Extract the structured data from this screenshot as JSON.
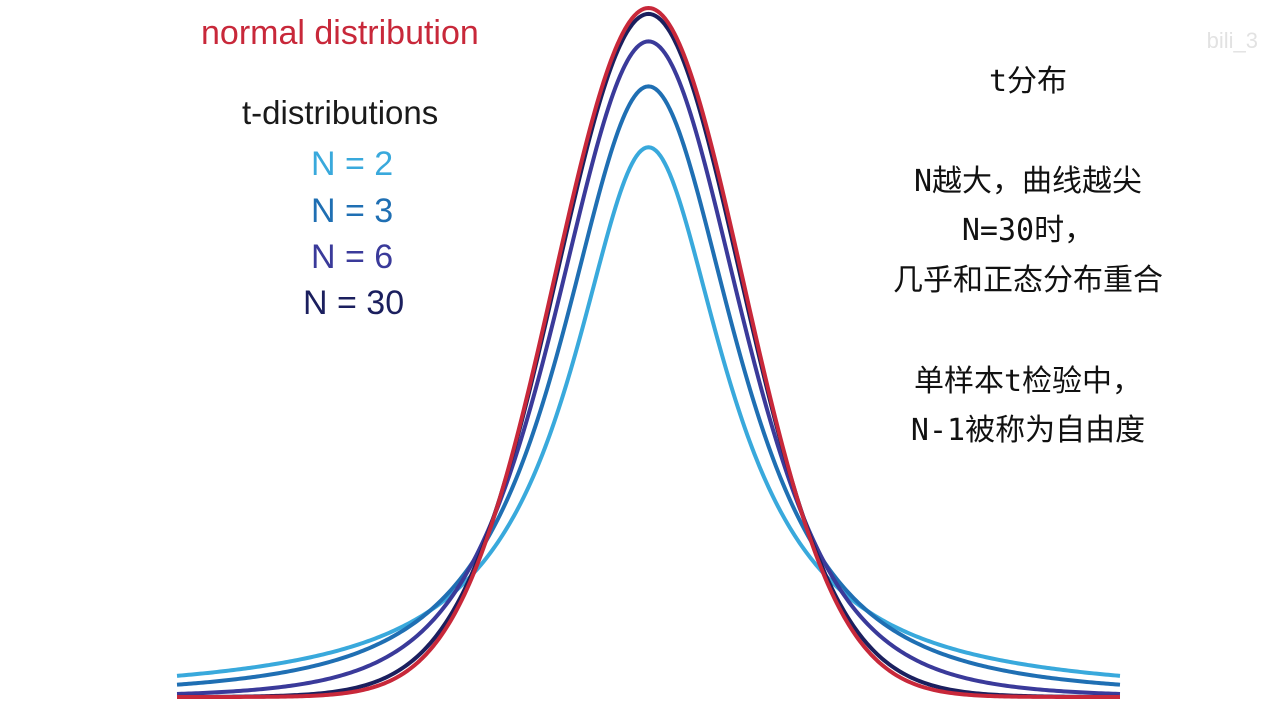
{
  "colors": {
    "normal": "#c8283a",
    "n2": "#39a9dc",
    "n3": "#1f6fb3",
    "n6": "#3a3a9a",
    "n30": "#1b1f5e"
  },
  "legend": {
    "normal_label": "normal distribution",
    "title": "t-distributions",
    "items": [
      {
        "label": "N = 2"
      },
      {
        "label": "N = 3"
      },
      {
        "label": "N = 6"
      },
      {
        "label": "N = 30"
      }
    ]
  },
  "notes": [
    "t分布",
    "N越大，曲线越尖",
    "N=30时，",
    "几乎和正态分布重合",
    "单样本t检验中，",
    "N-1被称为自由度"
  ],
  "watermark": "bili_3",
  "chart_data": {
    "type": "line",
    "xlim": [
      -5,
      5
    ],
    "series": [
      {
        "name": "normal distribution",
        "df": "normal",
        "color_key": "normal"
      },
      {
        "name": "N = 2",
        "df": 1,
        "color_key": "n2"
      },
      {
        "name": "N = 3",
        "df": 2,
        "color_key": "n3"
      },
      {
        "name": "N = 6",
        "df": 5,
        "color_key": "n6"
      },
      {
        "name": "N = 30",
        "df": 29,
        "color_key": "n30"
      }
    ]
  }
}
